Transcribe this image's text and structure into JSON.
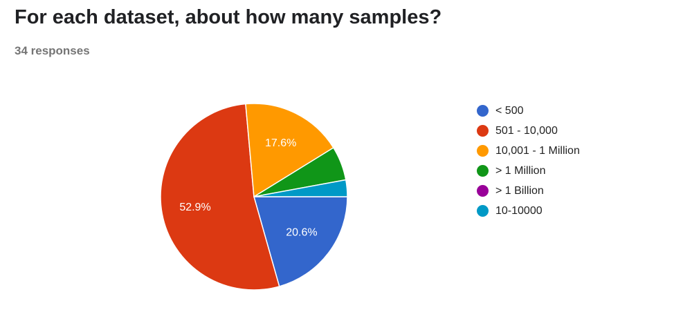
{
  "header": {
    "title": "For each dataset, about how many samples?",
    "responses": "34 responses"
  },
  "chart_data": {
    "type": "pie",
    "title": "For each dataset, about how many samples?",
    "slices": [
      {
        "label": "< 500",
        "value": 20.6,
        "display": "20.6%",
        "color": "#3366cc"
      },
      {
        "label": "501 - 10,000",
        "value": 52.9,
        "display": "52.9%",
        "color": "#dc3912"
      },
      {
        "label": "10,001 - 1 Million",
        "value": 17.6,
        "display": "17.6%",
        "color": "#ff9900"
      },
      {
        "label": "> 1 Million",
        "value": 5.9,
        "display": "",
        "color": "#109618"
      },
      {
        "label": "> 1 Billion",
        "value": 0,
        "display": "",
        "color": "#990099"
      },
      {
        "label": "10-10000",
        "value": 2.9,
        "display": "",
        "color": "#0099c6"
      }
    ],
    "legend_position": "right"
  }
}
